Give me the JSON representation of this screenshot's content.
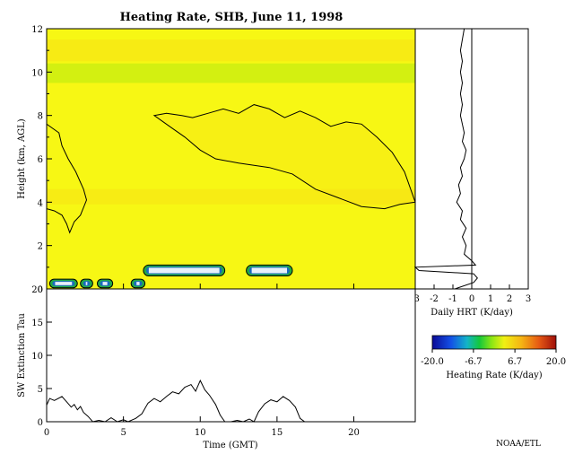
{
  "title": "Heating Rate, SHB, June 11, 1998",
  "footer": "NOAA/ETL",
  "colors": {
    "background": "#ffffff",
    "field_base": "#f7f714",
    "light_band": "#ccee10",
    "orange_band": "#f7e214",
    "cloud_fill": "#99ee33",
    "low_cloud_green": "#22aa44",
    "low_cloud_blue": "#1a6abf",
    "contour": "#000000"
  },
  "heatmap": {
    "ylabel": "Height (km, AGL)",
    "x_range": [
      0,
      24
    ],
    "y_range": [
      0,
      12
    ],
    "y_ticks": [
      "0",
      "2",
      "4",
      "6",
      "8",
      "10",
      "12"
    ],
    "x_ticks": [
      0,
      5,
      10,
      15,
      20
    ]
  },
  "profile": {
    "xlabel": "Daily HRT (K/day)",
    "x_range": [
      -3,
      3
    ],
    "x_ticks": [
      "-3",
      "-2",
      "-1",
      "0",
      "1",
      "2",
      "3"
    ]
  },
  "colorbar": {
    "label": "Heating Rate (K/day)",
    "range": [
      -20,
      20
    ],
    "ticks": [
      "-20.0",
      "-6.7",
      "6.7",
      "20.0"
    ]
  },
  "chart_data": [
    {
      "type": "heatmap",
      "title": "Heating Rate, SHB, June 11, 1998",
      "ylabel": "Height (km, AGL)",
      "x_range": [
        0,
        24
      ],
      "y_range": [
        0,
        12
      ],
      "background_value_K_per_day": 3,
      "upper_cloud_contour": {
        "top": [
          [
            7.0,
            8.0
          ],
          [
            7.8,
            8.1
          ],
          [
            8.8,
            8.0
          ],
          [
            9.5,
            7.9
          ],
          [
            10.5,
            8.1
          ],
          [
            11.5,
            8.3
          ],
          [
            12.5,
            8.1
          ],
          [
            13.5,
            8.5
          ],
          [
            14.5,
            8.3
          ],
          [
            15.5,
            7.9
          ],
          [
            16.5,
            8.2
          ],
          [
            17.5,
            7.9
          ],
          [
            18.5,
            7.5
          ],
          [
            19.5,
            7.7
          ],
          [
            20.5,
            7.6
          ],
          [
            21.5,
            7.0
          ],
          [
            22.5,
            6.3
          ],
          [
            23.3,
            5.4
          ],
          [
            24.0,
            4.0
          ]
        ],
        "bottom": [
          [
            24.0,
            4.0
          ],
          [
            23.0,
            3.9
          ],
          [
            22.0,
            3.7
          ],
          [
            20.5,
            3.8
          ],
          [
            19.0,
            4.2
          ],
          [
            17.5,
            4.6
          ],
          [
            16.0,
            5.3
          ],
          [
            14.5,
            5.6
          ],
          [
            12.5,
            5.8
          ],
          [
            11.0,
            6.0
          ],
          [
            10.0,
            6.4
          ],
          [
            9.0,
            7.0
          ],
          [
            8.0,
            7.5
          ],
          [
            7.0,
            8.0
          ]
        ]
      },
      "left_cloud_contour": [
        [
          0.0,
          7.6
        ],
        [
          0.8,
          7.2
        ],
        [
          1.0,
          6.6
        ],
        [
          1.4,
          6.0
        ],
        [
          1.9,
          5.4
        ],
        [
          2.4,
          4.6
        ],
        [
          2.6,
          4.1
        ],
        [
          2.2,
          3.4
        ],
        [
          1.8,
          3.1
        ],
        [
          1.5,
          2.6
        ],
        [
          1.3,
          3.0
        ],
        [
          1.0,
          3.4
        ],
        [
          0.5,
          3.6
        ],
        [
          0.0,
          3.7
        ]
      ],
      "low_clouds": [
        {
          "x0": 0.2,
          "x1": 2.0,
          "y0": 0.05,
          "y1": 0.45
        },
        {
          "x0": 2.2,
          "x1": 3.0,
          "y0": 0.05,
          "y1": 0.45
        },
        {
          "x0": 3.3,
          "x1": 4.3,
          "y0": 0.05,
          "y1": 0.45
        },
        {
          "x0": 5.5,
          "x1": 6.4,
          "y0": 0.05,
          "y1": 0.45
        },
        {
          "x0": 6.3,
          "x1": 11.6,
          "y0": 0.6,
          "y1": 1.1
        },
        {
          "x0": 13.0,
          "x1": 16.0,
          "y0": 0.6,
          "y1": 1.1
        }
      ]
    },
    {
      "type": "line",
      "name": "daily_profile",
      "xlabel": "Daily HRT (K/day)",
      "x_range": [
        -3,
        3
      ],
      "y_range": [
        0,
        12
      ],
      "points": [
        [
          -0.9,
          0.0
        ],
        [
          0.1,
          0.3
        ],
        [
          0.3,
          0.5
        ],
        [
          0.1,
          0.7
        ],
        [
          -2.8,
          0.85
        ],
        [
          -3.0,
          1.0
        ],
        [
          0.2,
          1.1
        ],
        [
          0.0,
          1.3
        ],
        [
          -0.4,
          1.6
        ],
        [
          -0.3,
          2.0
        ],
        [
          -0.5,
          2.4
        ],
        [
          -0.3,
          2.8
        ],
        [
          -0.6,
          3.2
        ],
        [
          -0.5,
          3.6
        ],
        [
          -0.8,
          4.0
        ],
        [
          -0.6,
          4.4
        ],
        [
          -0.7,
          4.8
        ],
        [
          -0.5,
          5.2
        ],
        [
          -0.6,
          5.6
        ],
        [
          -0.4,
          6.0
        ],
        [
          -0.3,
          6.4
        ],
        [
          -0.5,
          6.8
        ],
        [
          -0.4,
          7.2
        ],
        [
          -0.5,
          7.6
        ],
        [
          -0.6,
          8.0
        ],
        [
          -0.5,
          8.5
        ],
        [
          -0.6,
          9.0
        ],
        [
          -0.5,
          9.5
        ],
        [
          -0.6,
          10.0
        ],
        [
          -0.5,
          10.5
        ],
        [
          -0.6,
          11.0
        ],
        [
          -0.5,
          11.5
        ],
        [
          -0.4,
          12.0
        ]
      ]
    },
    {
      "type": "line",
      "name": "sw_extinction_tau",
      "xlabel": "Time (GMT)",
      "ylabel": "SW Extinction Tau",
      "x_range": [
        0,
        24
      ],
      "y_range": [
        0,
        20
      ],
      "y_ticks": [
        "0",
        "5",
        "10",
        "15",
        "20"
      ],
      "x_ticks": [
        "0",
        "5",
        "10",
        "15",
        "20"
      ],
      "points": [
        [
          0.0,
          2.5
        ],
        [
          0.2,
          3.5
        ],
        [
          0.5,
          3.2
        ],
        [
          1.0,
          3.8
        ],
        [
          1.3,
          3.0
        ],
        [
          1.6,
          2.2
        ],
        [
          1.8,
          2.6
        ],
        [
          2.0,
          1.8
        ],
        [
          2.2,
          2.3
        ],
        [
          2.4,
          1.4
        ],
        [
          2.7,
          0.8
        ],
        [
          3.0,
          0.0
        ],
        [
          3.4,
          0.2
        ],
        [
          3.8,
          0.0
        ],
        [
          4.2,
          0.6
        ],
        [
          4.6,
          0.0
        ],
        [
          5.0,
          0.3
        ],
        [
          5.3,
          0.0
        ],
        [
          5.8,
          0.5
        ],
        [
          6.2,
          1.2
        ],
        [
          6.6,
          2.8
        ],
        [
          7.0,
          3.5
        ],
        [
          7.4,
          3.0
        ],
        [
          7.8,
          3.8
        ],
        [
          8.2,
          4.5
        ],
        [
          8.6,
          4.2
        ],
        [
          9.0,
          5.2
        ],
        [
          9.4,
          5.6
        ],
        [
          9.7,
          4.6
        ],
        [
          10.0,
          6.2
        ],
        [
          10.3,
          4.8
        ],
        [
          10.6,
          4.0
        ],
        [
          11.0,
          2.6
        ],
        [
          11.3,
          1.0
        ],
        [
          11.6,
          0.0
        ],
        [
          12.0,
          0.0
        ],
        [
          12.4,
          0.2
        ],
        [
          12.8,
          0.0
        ],
        [
          13.2,
          0.4
        ],
        [
          13.5,
          0.0
        ],
        [
          13.8,
          1.5
        ],
        [
          14.2,
          2.7
        ],
        [
          14.6,
          3.3
        ],
        [
          15.0,
          3.0
        ],
        [
          15.4,
          3.8
        ],
        [
          15.8,
          3.2
        ],
        [
          16.2,
          2.2
        ],
        [
          16.5,
          0.5
        ],
        [
          16.8,
          0.0
        ],
        [
          17.2,
          0.0
        ],
        [
          24.0,
          0.0
        ]
      ]
    },
    {
      "type": "colorbar",
      "label": "Heating Rate (K/day)",
      "range": [
        -20,
        20
      ],
      "ticks": [
        -20.0,
        -6.7,
        6.7,
        20.0
      ]
    }
  ]
}
